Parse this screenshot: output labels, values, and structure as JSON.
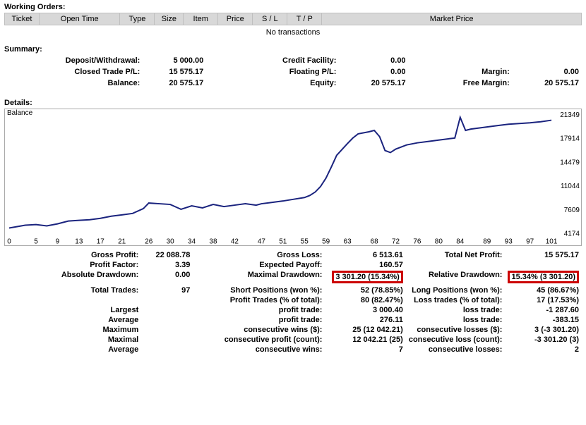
{
  "workingOrders": {
    "title": "Working Orders:",
    "cols": [
      "Ticket",
      "Open Time",
      "Type",
      "Size",
      "Item",
      "Price",
      "S / L",
      "T / P",
      "Market Price"
    ],
    "colWidths": [
      "6%",
      "14%",
      "6%",
      "5%",
      "6%",
      "6%",
      "6%",
      "6%",
      "45%"
    ],
    "empty": "No transactions"
  },
  "summary": {
    "title": "Summary:",
    "rows": [
      [
        {
          "l": "Deposit/Withdrawal:",
          "v": "5 000.00"
        },
        {
          "l": "Credit Facility:",
          "v": "0.00"
        },
        {
          "l": "",
          "v": ""
        }
      ],
      [
        {
          "l": "Closed Trade P/L:",
          "v": "15 575.17"
        },
        {
          "l": "Floating P/L:",
          "v": "0.00"
        },
        {
          "l": "Margin:",
          "v": "0.00"
        }
      ],
      [
        {
          "l": "Balance:",
          "v": "20 575.17"
        },
        {
          "l": "Equity:",
          "v": "20 575.17"
        },
        {
          "l": "Free Margin:",
          "v": "20 575.17"
        }
      ]
    ]
  },
  "details": {
    "title": "Details:",
    "chart": {
      "label": "Balance",
      "line_color": "#1a237e",
      "frame_color": "#aaaaaa",
      "background": "#ffffff",
      "x_ticks": [
        "0",
        "5",
        "9",
        "13",
        "17",
        "21",
        "26",
        "30",
        "34",
        "38",
        "42",
        "47",
        "51",
        "55",
        "59",
        "63",
        "68",
        "72",
        "76",
        "80",
        "84",
        "89",
        "93",
        "97",
        "101"
      ],
      "y_ticks": [
        "21349",
        "17914",
        "14479",
        "11044",
        "7609",
        "4174"
      ],
      "y_min": 4174,
      "y_max": 21349,
      "x_min": 0,
      "x_max": 101,
      "points": [
        [
          0,
          5000
        ],
        [
          3,
          5400
        ],
        [
          5,
          5500
        ],
        [
          7,
          5300
        ],
        [
          9,
          5600
        ],
        [
          11,
          6000
        ],
        [
          13,
          6100
        ],
        [
          15,
          6200
        ],
        [
          17,
          6400
        ],
        [
          19,
          6700
        ],
        [
          21,
          6900
        ],
        [
          23,
          7100
        ],
        [
          25,
          7800
        ],
        [
          26,
          8600
        ],
        [
          28,
          8500
        ],
        [
          30,
          8400
        ],
        [
          32,
          7700
        ],
        [
          34,
          8200
        ],
        [
          36,
          7900
        ],
        [
          38,
          8400
        ],
        [
          40,
          8100
        ],
        [
          42,
          8300
        ],
        [
          44,
          8500
        ],
        [
          46,
          8300
        ],
        [
          47,
          8500
        ],
        [
          49,
          8700
        ],
        [
          51,
          8900
        ],
        [
          53,
          9150
        ],
        [
          55,
          9400
        ],
        [
          56,
          9700
        ],
        [
          57,
          10200
        ],
        [
          58,
          11000
        ],
        [
          59,
          12200
        ],
        [
          60,
          13800
        ],
        [
          61,
          15500
        ],
        [
          63,
          17200
        ],
        [
          64,
          18000
        ],
        [
          65,
          18600
        ],
        [
          67,
          18900
        ],
        [
          68,
          19100
        ],
        [
          69,
          18200
        ],
        [
          70,
          16200
        ],
        [
          71,
          15900
        ],
        [
          72,
          16400
        ],
        [
          74,
          17000
        ],
        [
          76,
          17300
        ],
        [
          78,
          17500
        ],
        [
          80,
          17700
        ],
        [
          82,
          17900
        ],
        [
          83,
          18000
        ],
        [
          84,
          21000
        ],
        [
          85,
          19100
        ],
        [
          86,
          19300
        ],
        [
          88,
          19500
        ],
        [
          89,
          19600
        ],
        [
          91,
          19800
        ],
        [
          93,
          20000
        ],
        [
          95,
          20100
        ],
        [
          97,
          20200
        ],
        [
          99,
          20350
        ],
        [
          101,
          20575
        ]
      ]
    },
    "stats": [
      [
        {
          "l": "Gross Profit:",
          "v": "22 088.78"
        },
        {
          "l": "Gross Loss:",
          "v": "6 513.61"
        },
        {
          "l": "Total Net Profit:",
          "v": "15 575.17"
        }
      ],
      [
        {
          "l": "Profit Factor:",
          "v": "3.39"
        },
        {
          "l": "Expected Payoff:",
          "v": "160.57"
        },
        {
          "l": "",
          "v": ""
        }
      ],
      [
        {
          "l": "Absolute Drawdown:",
          "v": "0.00"
        },
        {
          "l": "Maximal Drawdown:",
          "v": "3 301.20 (15.34%)",
          "hl": true
        },
        {
          "l": "Relative Drawdown:",
          "v": "15.34% (3 301.20)",
          "hl": true
        }
      ],
      [
        {
          "l": "",
          "v": ""
        },
        {
          "l": "",
          "v": ""
        },
        {
          "l": "",
          "v": ""
        }
      ],
      [
        {
          "l": "Total Trades:",
          "v": "97"
        },
        {
          "l": "Short Positions (won %):",
          "v": "52 (78.85%)"
        },
        {
          "l": "Long Positions (won %):",
          "v": "45 (86.67%)"
        }
      ],
      [
        {
          "l": "",
          "v": ""
        },
        {
          "l": "Profit Trades (% of total):",
          "v": "80 (82.47%)"
        },
        {
          "l": "Loss trades (% of total):",
          "v": "17 (17.53%)"
        }
      ],
      [
        {
          "l": "Largest",
          "v": ""
        },
        {
          "l": "profit trade:",
          "v": "3 000.40"
        },
        {
          "l": "loss trade:",
          "v": "-1 287.60"
        }
      ],
      [
        {
          "l": "Average",
          "v": ""
        },
        {
          "l": "profit trade:",
          "v": "276.11"
        },
        {
          "l": "loss trade:",
          "v": "-383.15"
        }
      ],
      [
        {
          "l": "Maximum",
          "v": ""
        },
        {
          "l": "consecutive wins ($):",
          "v": "25 (12 042.21)"
        },
        {
          "l": "consecutive losses ($):",
          "v": "3 (-3 301.20)"
        }
      ],
      [
        {
          "l": "Maximal",
          "v": ""
        },
        {
          "l": "consecutive profit (count):",
          "v": "12 042.21 (25)"
        },
        {
          "l": "consecutive loss (count):",
          "v": "-3 301.20 (3)"
        }
      ],
      [
        {
          "l": "Average",
          "v": ""
        },
        {
          "l": "consecutive wins:",
          "v": "7"
        },
        {
          "l": "consecutive losses:",
          "v": "2"
        }
      ]
    ]
  }
}
